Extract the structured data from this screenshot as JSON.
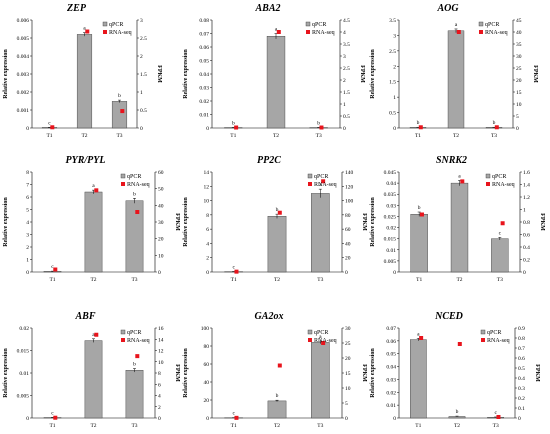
{
  "colors": {
    "bar": "#a6a6a6",
    "bar_stroke": "#333333",
    "rnaseq_marker": "#e8141c",
    "axis": "#000000"
  },
  "legend_icons": {
    "qpcr": "grey-square-icon",
    "rnaseq": "red-square-icon"
  },
  "chart_data": [
    {
      "type": "bar",
      "title": "ZEP",
      "categories": [
        "T1",
        "T2",
        "T3"
      ],
      "ylabel": "Relative expression",
      "y2label": "FPKM",
      "ylim": [
        0,
        0.006
      ],
      "yticks": [
        "0",
        "0.001",
        "0.002",
        "0.003",
        "0.004",
        "0.005",
        "0.006"
      ],
      "y2lim": [
        0,
        3
      ],
      "y2ticks": [
        "0",
        "0.5",
        "1",
        "1.5",
        "2",
        "2.5",
        "3"
      ],
      "legend_position": "top-right",
      "series": [
        {
          "name": "qPCR",
          "kind": "bar",
          "values": [
            3e-05,
            0.0052,
            0.00148
          ],
          "errors": [
            1e-05,
            0.0001,
            7e-05
          ]
        },
        {
          "name": "RNA-seq",
          "kind": "marker",
          "axis": "secondary",
          "values": [
            0.02,
            2.68,
            0.47
          ]
        }
      ],
      "significance": [
        "c",
        "a",
        "b"
      ]
    },
    {
      "type": "bar",
      "title": "ABA2",
      "categories": [
        "T1",
        "T2",
        "T3"
      ],
      "ylabel": "Relative expression",
      "y2label": "FPKM",
      "ylim": [
        0,
        0.08
      ],
      "yticks": [
        "0",
        "0.01",
        "0.02",
        "0.03",
        "0.04",
        "0.05",
        "0.06",
        "0.07",
        "0.08"
      ],
      "y2lim": [
        0,
        4.5
      ],
      "y2ticks": [
        "0",
        "0.5",
        "1",
        "1.5",
        "2",
        "2.5",
        "3",
        "3.5",
        "4",
        "4.5"
      ],
      "legend_position": "top-right",
      "series": [
        {
          "name": "qPCR",
          "kind": "bar",
          "values": [
            0.0003,
            0.068,
            0.0003
          ],
          "errors": [
            0.0001,
            0.002,
            0.0001
          ]
        },
        {
          "name": "RNA-seq",
          "kind": "marker",
          "axis": "secondary",
          "values": [
            0.02,
            4.0,
            0.02
          ]
        }
      ],
      "significance": [
        "b",
        "a",
        "b"
      ]
    },
    {
      "type": "bar",
      "title": "AOG",
      "categories": [
        "T1",
        "T2",
        "T3"
      ],
      "ylabel": "Relative expression",
      "y2label": "FPKM",
      "ylim": [
        0,
        3.5
      ],
      "yticks": [
        "0",
        "0.5",
        "1",
        "1.5",
        "2",
        "2.5",
        "3",
        "3.5"
      ],
      "y2lim": [
        0,
        45
      ],
      "y2ticks": [
        "0",
        "5",
        "10",
        "15",
        "20",
        "25",
        "30",
        "35",
        "40",
        "45"
      ],
      "legend_position": "top-right",
      "series": [
        {
          "name": "qPCR",
          "kind": "bar",
          "values": [
            0.02,
            3.15,
            0.02
          ],
          "errors": [
            0.005,
            0.06,
            0.005
          ]
        },
        {
          "name": "RNA-seq",
          "kind": "marker",
          "axis": "secondary",
          "values": [
            0.3,
            40,
            0.3
          ]
        }
      ],
      "significance": [
        "b",
        "a",
        "b"
      ]
    },
    {
      "type": "bar",
      "title": "PYR/PYL",
      "categories": [
        "T1",
        "T2",
        "T3"
      ],
      "ylabel": "Relative expression",
      "y2label": "FPKM",
      "ylim": [
        0,
        8
      ],
      "yticks": [
        "0",
        "1",
        "2",
        "3",
        "4",
        "5",
        "6",
        "7",
        "8"
      ],
      "y2lim": [
        0,
        60
      ],
      "y2ticks": [
        "0",
        "10",
        "20",
        "30",
        "40",
        "50",
        "60"
      ],
      "legend_position": "top-right",
      "series": [
        {
          "name": "qPCR",
          "kind": "bar",
          "values": [
            0.05,
            6.4,
            5.7
          ],
          "errors": [
            0.02,
            0.15,
            0.2
          ]
        },
        {
          "name": "RNA-seq",
          "kind": "marker",
          "axis": "secondary",
          "values": [
            1.5,
            49,
            36
          ]
        }
      ],
      "significance": [
        "c",
        "a",
        "b"
      ]
    },
    {
      "type": "bar",
      "title": "PP2C",
      "categories": [
        "T1",
        "T2",
        "T3"
      ],
      "ylabel": "Relative expression",
      "y2label": "FPKM",
      "ylim": [
        0,
        14
      ],
      "yticks": [
        "0",
        "2",
        "4",
        "6",
        "8",
        "10",
        "12",
        "14"
      ],
      "y2lim": [
        0,
        140
      ],
      "y2ticks": [
        "0",
        "20",
        "40",
        "60",
        "80",
        "100",
        "120",
        "140"
      ],
      "legend_position": "top-right",
      "series": [
        {
          "name": "qPCR",
          "kind": "bar",
          "values": [
            0.05,
            7.8,
            11.0
          ],
          "errors": [
            0.02,
            0.3,
            0.6
          ]
        },
        {
          "name": "RNA-seq",
          "kind": "marker",
          "axis": "secondary",
          "values": [
            0.5,
            83,
            127
          ]
        }
      ],
      "significance": [
        "c",
        "b",
        "a"
      ]
    },
    {
      "type": "bar",
      "title": "SNRK2",
      "categories": [
        "T1",
        "T2",
        "T3"
      ],
      "ylabel": "Relative expression",
      "y2label": "FPKM",
      "ylim": [
        0,
        0.045
      ],
      "yticks": [
        "0",
        "0.005",
        "0.01",
        "0.015",
        "0.02",
        "0.025",
        "0.03",
        "0.035",
        "0.04",
        "0.045"
      ],
      "y2lim": [
        0,
        1.6
      ],
      "y2ticks": [
        "0",
        "0.2",
        "0.4",
        "0.6",
        "0.8",
        "1",
        "1.2",
        "1.4",
        "1.6"
      ],
      "legend_position": "top-right",
      "series": [
        {
          "name": "qPCR",
          "kind": "bar",
          "values": [
            0.026,
            0.04,
            0.015
          ],
          "errors": [
            0.001,
            0.0012,
            0.0006
          ]
        },
        {
          "name": "RNA-seq",
          "kind": "marker",
          "axis": "secondary",
          "values": [
            0.92,
            1.45,
            0.78
          ]
        }
      ],
      "significance": [
        "b",
        "a",
        "c"
      ]
    },
    {
      "type": "bar",
      "title": "ABF",
      "categories": [
        "T1",
        "T2",
        "T3"
      ],
      "ylabel": "Relative expression",
      "y2label": "FPKM",
      "ylim": [
        0,
        0.02
      ],
      "yticks": [
        "0",
        "0.005",
        "0.01",
        "0.015",
        "0.02"
      ],
      "y2lim": [
        0,
        16
      ],
      "y2ticks": [
        "0",
        "2",
        "4",
        "6",
        "8",
        "10",
        "12",
        "14",
        "16"
      ],
      "legend_position": "top-right",
      "series": [
        {
          "name": "qPCR",
          "kind": "bar",
          "values": [
            0.0001,
            0.0172,
            0.0106
          ],
          "errors": [
            3e-05,
            0.0004,
            0.0004
          ]
        },
        {
          "name": "RNA-seq",
          "kind": "marker",
          "axis": "secondary",
          "values": [
            0.05,
            14.8,
            11.0
          ]
        }
      ],
      "significance": [
        "c",
        "a",
        "b"
      ]
    },
    {
      "type": "bar",
      "title": "GA2ox",
      "categories": [
        "T1",
        "T2",
        "T3"
      ],
      "ylabel": "Relative expression",
      "y2label": "FPKM",
      "ylim": [
        0,
        100
      ],
      "yticks": [
        "0",
        "20",
        "40",
        "60",
        "80",
        "100"
      ],
      "y2lim": [
        0,
        30
      ],
      "y2ticks": [
        "0",
        "5",
        "10",
        "15",
        "20",
        "25",
        "30"
      ],
      "legend_position": "top-right",
      "series": [
        {
          "name": "qPCR",
          "kind": "bar",
          "values": [
            0.3,
            19,
            84
          ],
          "errors": [
            0.1,
            0.8,
            1.5
          ]
        },
        {
          "name": "RNA-seq",
          "kind": "marker",
          "axis": "secondary",
          "values": [
            0.05,
            17.5,
            25
          ]
        }
      ],
      "significance": [
        "c",
        "b",
        "a"
      ]
    },
    {
      "type": "bar",
      "title": "NCED",
      "categories": [
        "T1",
        "T2",
        "T3"
      ],
      "ylabel": "Relative expression",
      "y2label": "FPKM",
      "ylim": [
        0,
        0.07
      ],
      "yticks": [
        "0",
        "0.01",
        "0.02",
        "0.03",
        "0.04",
        "0.05",
        "0.06",
        "0.07"
      ],
      "y2lim": [
        0,
        0.9
      ],
      "y2ticks": [
        "0",
        "0.1",
        "0.2",
        "0.3",
        "0.4",
        "0.5",
        "0.6",
        "0.7",
        "0.8",
        "0.9"
      ],
      "legend_position": "top-right",
      "series": [
        {
          "name": "qPCR",
          "kind": "bar",
          "values": [
            0.061,
            0.0012,
            0.0006
          ],
          "errors": [
            0.001,
            0.0003,
            0.0002
          ]
        },
        {
          "name": "RNA-seq",
          "kind": "marker",
          "axis": "secondary",
          "values": [
            0.8,
            0.74,
            0.01
          ]
        }
      ],
      "significance": [
        "a",
        "b",
        "c"
      ]
    }
  ]
}
